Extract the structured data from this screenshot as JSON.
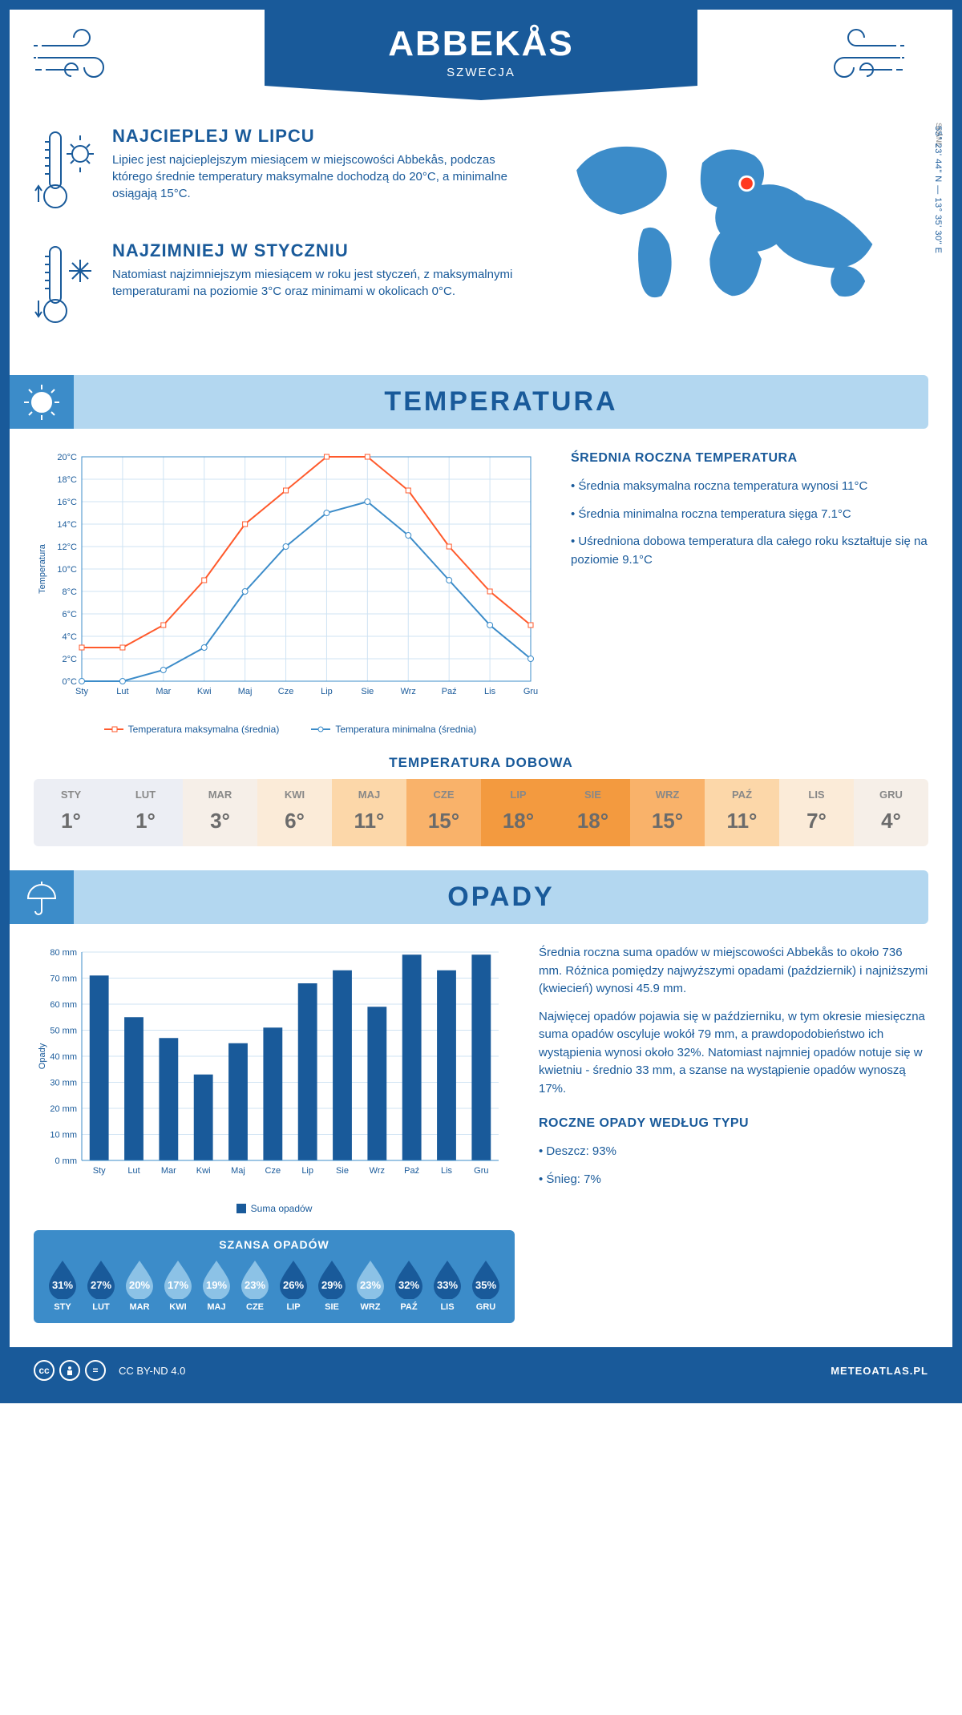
{
  "header": {
    "title": "ABBEKÅS",
    "subtitle": "SZWECJA"
  },
  "coords": "55° 23' 44\" N — 13° 35' 30\" E",
  "region": "SKÅNE",
  "facts": {
    "hot": {
      "title": "NAJCIEPLEJ W LIPCU",
      "text": "Lipiec jest najcieplejszym miesiącem w miejscowości Abbekås, podczas którego średnie temperatury maksymalne dochodzą do 20°C, a minimalne osiągają 15°C."
    },
    "cold": {
      "title": "NAJZIMNIEJ W STYCZNIU",
      "text": "Natomiast najzimniejszym miesiącem w roku jest styczeń, z maksymalnymi temperaturami na poziomie 3°C oraz minimami w okolicach 0°C."
    }
  },
  "sections": {
    "temp_title": "TEMPERATURA",
    "precip_title": "OPADY"
  },
  "temp_chart": {
    "type": "line",
    "months": [
      "Sty",
      "Lut",
      "Mar",
      "Kwi",
      "Maj",
      "Cze",
      "Lip",
      "Sie",
      "Wrz",
      "Paź",
      "Lis",
      "Gru"
    ],
    "max_series": {
      "label": "Temperatura maksymalna (średnia)",
      "color": "#ff5a2c",
      "values": [
        3,
        3,
        5,
        9,
        14,
        17,
        20,
        20,
        17,
        12,
        8,
        5
      ]
    },
    "min_series": {
      "label": "Temperatura minimalna (średnia)",
      "color": "#3c8cc9",
      "values": [
        0,
        0,
        1,
        3,
        8,
        12,
        15,
        16,
        13,
        9,
        5,
        2
      ]
    },
    "ylabel": "Temperatura",
    "ylim": [
      0,
      20
    ],
    "ytick_step": 2,
    "ytick_suffix": "°C",
    "grid_color": "#cfe3f3",
    "background_color": "#ffffff"
  },
  "temp_side": {
    "title": "ŚREDNIA ROCZNA TEMPERATURA",
    "bullets": [
      "Średnia maksymalna roczna temperatura wynosi 11°C",
      "Średnia minimalna roczna temperatura sięga 7.1°C",
      "Uśredniona dobowa temperatura dla całego roku kształtuje się na poziomie 9.1°C"
    ]
  },
  "daily_temp": {
    "title": "TEMPERATURA DOBOWA",
    "months": [
      "STY",
      "LUT",
      "MAR",
      "KWI",
      "MAJ",
      "CZE",
      "LIP",
      "SIE",
      "WRZ",
      "PAŹ",
      "LIS",
      "GRU"
    ],
    "values": [
      "1°",
      "1°",
      "3°",
      "6°",
      "11°",
      "15°",
      "18°",
      "18°",
      "15°",
      "11°",
      "7°",
      "4°"
    ],
    "colors": [
      "#eceef4",
      "#eceef4",
      "#f6efe8",
      "#fbebd8",
      "#fcd7a9",
      "#f9b26a",
      "#f39a3f",
      "#f39a3f",
      "#f9b26a",
      "#fcd7a9",
      "#fbebd8",
      "#f6efe8"
    ]
  },
  "precip_chart": {
    "type": "bar",
    "months": [
      "Sty",
      "Lut",
      "Mar",
      "Kwi",
      "Maj",
      "Cze",
      "Lip",
      "Sie",
      "Wrz",
      "Paź",
      "Lis",
      "Gru"
    ],
    "values": [
      71,
      55,
      47,
      33,
      45,
      51,
      68,
      73,
      59,
      79,
      73,
      79
    ],
    "bar_color": "#195a9a",
    "ylabel": "Opady",
    "ylim": [
      0,
      80
    ],
    "ytick_step": 10,
    "ytick_suffix": " mm",
    "grid_color": "#cfe3f3",
    "legend_label": "Suma opadów"
  },
  "precip_text": {
    "p1": "Średnia roczna suma opadów w miejscowości Abbekås to około 736 mm. Różnica pomiędzy najwyższymi opadami (październik) i najniższymi (kwiecień) wynosi 45.9 mm.",
    "p2": "Najwięcej opadów pojawia się w październiku, w tym okresie miesięczna suma opadów oscyluje wokół 79 mm, a prawdopodobieństwo ich wystąpienia wynosi około 32%. Natomiast najmniej opadów notuje się w kwietniu - średnio 33 mm, a szanse na wystąpienie opadów wynoszą 17%.",
    "type_title": "ROCZNE OPADY WEDŁUG TYPU",
    "rain": "Deszcz: 93%",
    "snow": "Śnieg: 7%"
  },
  "chance": {
    "title": "SZANSA OPADÓW",
    "months": [
      "STY",
      "LUT",
      "MAR",
      "KWI",
      "MAJ",
      "CZE",
      "LIP",
      "SIE",
      "WRZ",
      "PAŹ",
      "LIS",
      "GRU"
    ],
    "values": [
      31,
      27,
      20,
      17,
      19,
      23,
      26,
      29,
      23,
      32,
      33,
      35
    ],
    "drop_fill_dark": "#195a9a",
    "drop_fill_light": "#8cc2e6",
    "threshold": 26
  },
  "footer": {
    "license": "CC BY-ND 4.0",
    "brand": "METEOATLAS.PL"
  }
}
